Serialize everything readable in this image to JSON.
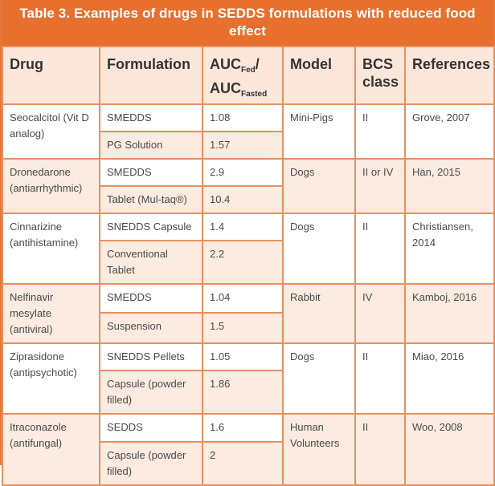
{
  "title": "Table 3. Examples of drugs in SEDDS formulations with reduced food effect",
  "headers": {
    "drug": "Drug",
    "formulation": "Formulation",
    "auc": "AUC",
    "fed": "Fed",
    "auc2": "AUC",
    "fasted": "Fasted",
    "model": "Model",
    "bcs": "BCS class",
    "references": "References"
  },
  "rows": [
    {
      "drug": "Seocalcitol (Vit D analog)",
      "model": "Mini-Pigs",
      "bcs": "II",
      "ref": "Grove, 2007",
      "f": [
        {
          "name": "SMEDDS",
          "auc": "1.08"
        },
        {
          "name": "PG Solution",
          "auc": "1.57"
        }
      ]
    },
    {
      "drug": "Dronedarone (antiarrhythmic)",
      "model": "Dogs",
      "bcs": "II or IV",
      "ref": "Han, 2015",
      "f": [
        {
          "name": "SMEDDS",
          "auc": "2.9"
        },
        {
          "name": "Tablet (Mul-taq®)",
          "auc": "10.4"
        }
      ]
    },
    {
      "drug": "Cinnarizine (antihistamine)",
      "model": "Dogs",
      "bcs": "II",
      "ref": "Christiansen, 2014",
      "f": [
        {
          "name": "SNEDDS Capsule",
          "auc": "1.4"
        },
        {
          "name": "Conventional Tablet",
          "auc": "2.2"
        }
      ]
    },
    {
      "drug": "Nelfinavir mesylate (antiviral)",
      "model": "Rabbit",
      "bcs": "IV",
      "ref": "Kamboj, 2016",
      "f": [
        {
          "name": "SMEDDS",
          "auc": "1.04"
        },
        {
          "name": "Suspension",
          "auc": "1.5"
        }
      ]
    },
    {
      "drug": "Ziprasidone (antipsychotic)",
      "model": "Dogs",
      "bcs": "II",
      "ref": "Miao, 2016",
      "f": [
        {
          "name": "SNEDDS Pellets",
          "auc": "1.05"
        },
        {
          "name": "Capsule (powder filled)",
          "auc": "1.86"
        }
      ]
    },
    {
      "drug": "Itraconazole (antifungal)",
      "model": "Human Volunteers",
      "bcs": "II",
      "ref": "Woo, 2008",
      "f": [
        {
          "name": "SEDDS",
          "auc": "1.6"
        },
        {
          "name": "Capsule (powder filled)",
          "auc": "2"
        }
      ]
    }
  ],
  "colors": {
    "title_bg": "#e8702e",
    "peach": "#fcebe0",
    "border": "#e8905e"
  }
}
